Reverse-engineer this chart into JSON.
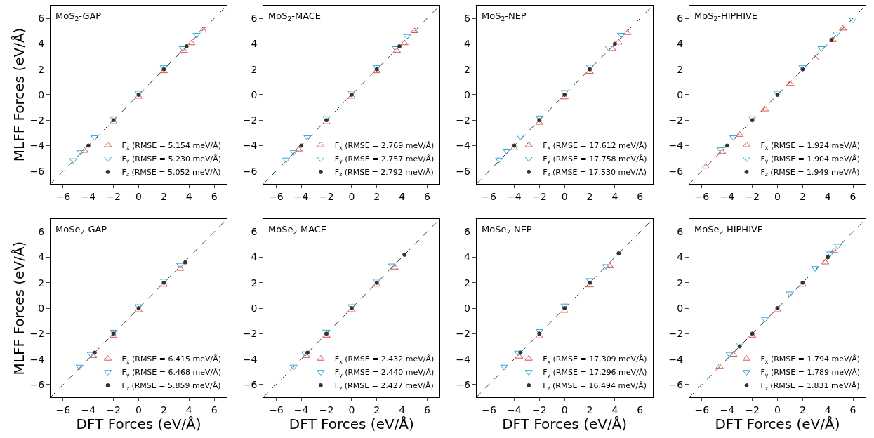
{
  "chart_data": [
    {
      "type": "scatter",
      "title": "MoS$_{2}$-GAP",
      "ylabel": "MLFF Forces (eV/Å)",
      "xlim": [
        -7,
        7
      ],
      "ylim": [
        -7,
        7
      ],
      "xticks": [
        -6,
        -4,
        -2,
        0,
        2,
        4,
        6
      ],
      "yticks": [
        -6,
        -4,
        -2,
        0,
        2,
        4,
        6
      ],
      "grid": false,
      "legend": "bottom right",
      "series": [
        {
          "name": "F$_{x}$ (RMSE = 5.154 meV/Å)",
          "color": "#e05252",
          "marker": "triangle",
          "x": [
            -4.3,
            -2,
            0,
            2,
            3.6,
            4.2,
            5.1
          ],
          "values": [
            -4.4,
            -2.15,
            -0.15,
            1.85,
            3.45,
            4.05,
            5.05
          ]
        },
        {
          "name": "F$_{y}$ (RMSE = 5.230 meV/Å)",
          "color": "#35a6d6",
          "marker": "triangle-down",
          "x": [
            -5.2,
            -4.6,
            -3.5,
            -2,
            0,
            2,
            3.5,
            4.6
          ],
          "values": [
            -5.15,
            -4.5,
            -3.35,
            -1.85,
            0.15,
            2.15,
            3.65,
            4.7
          ]
        },
        {
          "name": "F$_{z}$ (RMSE = 5.052 meV/Å)",
          "color": "#333333",
          "marker": "circle",
          "x": [
            -4,
            -2,
            0,
            2,
            3.8
          ],
          "values": [
            -4,
            -2,
            0,
            2,
            3.8
          ]
        },
        {
          "type": "line",
          "color": "#000000",
          "line_style": "dashed",
          "marker": "none",
          "x": [
            -7,
            7
          ],
          "values": [
            -7,
            7
          ]
        }
      ]
    },
    {
      "type": "scatter",
      "title": "MoS$_{2}$-MACE",
      "xlim": [
        -7,
        7
      ],
      "ylim": [
        -7,
        7
      ],
      "xticks": [
        -6,
        -4,
        -2,
        0,
        2,
        4,
        6
      ],
      "yticks": [
        -6,
        -4,
        -2,
        0,
        2,
        4,
        6
      ],
      "grid": false,
      "legend": "bottom right",
      "series": [
        {
          "name": "F$_{x}$ (RMSE = 2.769 meV/Å)",
          "color": "#e05252",
          "marker": "triangle",
          "x": [
            -4.2,
            -2,
            0,
            2,
            3.6,
            4.2,
            5.0
          ],
          "values": [
            -4.3,
            -2.15,
            -0.15,
            1.85,
            3.45,
            4.05,
            5.0
          ]
        },
        {
          "name": "F$_{y}$ (RMSE = 2.757 meV/Å)",
          "color": "#35a6d6",
          "marker": "triangle-down",
          "x": [
            -5.2,
            -4.6,
            -3.5,
            -2,
            0,
            2,
            3.5,
            4.4
          ],
          "values": [
            -5.1,
            -4.5,
            -3.35,
            -1.85,
            0.15,
            2.15,
            3.65,
            4.6
          ]
        },
        {
          "name": "F$_{z}$ (RMSE = 2.792 meV/Å)",
          "color": "#333333",
          "marker": "circle",
          "x": [
            -4,
            -2,
            0,
            2,
            3.8
          ],
          "values": [
            -4,
            -2,
            0,
            2,
            3.8
          ]
        },
        {
          "type": "line",
          "color": "#000000",
          "line_style": "dashed",
          "marker": "none",
          "x": [
            -7,
            7
          ],
          "values": [
            -7,
            7
          ]
        }
      ]
    },
    {
      "type": "scatter",
      "title": "MoS$_{2}$-NEP",
      "xlim": [
        -7,
        7
      ],
      "ylim": [
        -7,
        7
      ],
      "xticks": [
        -6,
        -4,
        -2,
        0,
        2,
        4,
        6
      ],
      "yticks": [
        -6,
        -4,
        -2,
        0,
        2,
        4,
        6
      ],
      "grid": false,
      "legend": "bottom right",
      "series": [
        {
          "name": "F$_{x}$ (RMSE = 17.612 meV/Å)",
          "color": "#e05252",
          "marker": "triangle",
          "x": [
            -4,
            -2,
            0,
            2,
            3.8,
            4.3,
            5.0
          ],
          "values": [
            -4.2,
            -2.2,
            -0.2,
            1.8,
            3.6,
            4.1,
            4.85
          ]
        },
        {
          "name": "F$_{y}$ (RMSE = 17.758 meV/Å)",
          "color": "#35a6d6",
          "marker": "triangle-down",
          "x": [
            -5.2,
            -4.6,
            -3.5,
            -2,
            0,
            2,
            3.5,
            4.5
          ],
          "values": [
            -5.1,
            -4.4,
            -3.3,
            -1.8,
            0.2,
            2.2,
            3.7,
            4.7
          ]
        },
        {
          "name": "F$_{z}$ (RMSE = 17.530 meV/Å)",
          "color": "#333333",
          "marker": "circle",
          "x": [
            -4,
            -2,
            0,
            2,
            4
          ],
          "values": [
            -4,
            -2,
            0,
            2,
            4
          ]
        },
        {
          "type": "line",
          "color": "#000000",
          "line_style": "dashed",
          "marker": "none",
          "x": [
            -7,
            7
          ],
          "values": [
            -7,
            7
          ]
        }
      ]
    },
    {
      "type": "scatter",
      "title": "MoS$_{2}$-HIPHIVE",
      "xlim": [
        -7,
        7
      ],
      "ylim": [
        -7,
        7
      ],
      "xticks": [
        -6,
        -4,
        -2,
        0,
        2,
        4,
        6
      ],
      "yticks": [
        -6,
        -4,
        -2,
        0,
        2,
        4,
        6
      ],
      "grid": false,
      "legend": "bottom right",
      "series": [
        {
          "name": "F$_{x}$ (RMSE = 1.924 meV/Å)",
          "color": "#e05252",
          "marker": "triangle",
          "x": [
            -5.7,
            -4.4,
            -3,
            -1,
            1,
            3,
            4.4,
            5.2
          ],
          "values": [
            -5.65,
            -4.5,
            -3.15,
            -1.15,
            0.85,
            2.85,
            4.3,
            5.2
          ]
        },
        {
          "name": "F$_{y}$ (RMSE = 1.904 meV/Å)",
          "color": "#35a6d6",
          "marker": "triangle-down",
          "x": [
            -4.5,
            -3.5,
            -2,
            0,
            2,
            3.5,
            4.7,
            6.0
          ],
          "values": [
            -4.3,
            -3.35,
            -1.85,
            0.15,
            2.15,
            3.65,
            4.8,
            5.9
          ]
        },
        {
          "name": "F$_{z}$ (RMSE = 1.949 meV/Å)",
          "color": "#333333",
          "marker": "circle",
          "x": [
            -4,
            -2,
            0,
            2,
            4.3
          ],
          "values": [
            -4,
            -2,
            0,
            2,
            4.3
          ]
        },
        {
          "type": "line",
          "color": "#000000",
          "line_style": "dashed",
          "marker": "none",
          "x": [
            -7,
            7
          ],
          "values": [
            -7,
            7
          ]
        }
      ]
    },
    {
      "type": "scatter",
      "title": "MoSe$_{2}$-GAP",
      "xlabel": "DFT Forces (eV/Å)",
      "ylabel": "MLFF Forces (eV/Å)",
      "xlim": [
        -7,
        7
      ],
      "ylim": [
        -7,
        7
      ],
      "xticks": [
        -6,
        -4,
        -2,
        0,
        2,
        4,
        6
      ],
      "yticks": [
        -6,
        -4,
        -2,
        0,
        2,
        4,
        6
      ],
      "grid": false,
      "legend": "bottom right",
      "series": [
        {
          "name": "F$_{x}$ (RMSE = 6.415 meV/Å)",
          "color": "#e05252",
          "marker": "triangle",
          "x": [
            -3.6,
            -2,
            0,
            2,
            3.3
          ],
          "values": [
            -3.75,
            -2.15,
            -0.15,
            1.85,
            3.1
          ]
        },
        {
          "name": "F$_{y}$ (RMSE = 6.468 meV/Å)",
          "color": "#35a6d6",
          "marker": "triangle-down",
          "x": [
            -4.7,
            -3.8,
            -2,
            0,
            2,
            3.3
          ],
          "values": [
            -4.6,
            -3.6,
            -1.85,
            0.15,
            2.15,
            3.4
          ]
        },
        {
          "name": "F$_{z}$ (RMSE = 5.859 meV/Å)",
          "color": "#333333",
          "marker": "circle",
          "x": [
            -3.5,
            -2,
            0,
            2,
            3.7
          ],
          "values": [
            -3.5,
            -2,
            0,
            2,
            3.6
          ]
        },
        {
          "type": "line",
          "color": "#000000",
          "line_style": "dashed",
          "marker": "none",
          "x": [
            -7,
            7
          ],
          "values": [
            -7,
            7
          ]
        }
      ]
    },
    {
      "type": "scatter",
      "title": "MoSe$_{2}$-MACE",
      "xlabel": "DFT Forces (eV/Å)",
      "xlim": [
        -7,
        7
      ],
      "ylim": [
        -7,
        7
      ],
      "xticks": [
        -6,
        -4,
        -2,
        0,
        2,
        4,
        6
      ],
      "yticks": [
        -6,
        -4,
        -2,
        0,
        2,
        4,
        6
      ],
      "grid": false,
      "legend": "bottom right",
      "series": [
        {
          "name": "F$_{x}$ (RMSE = 2.432 meV/Å)",
          "color": "#e05252",
          "marker": "triangle",
          "x": [
            -3.6,
            -2,
            0,
            2,
            3.4
          ],
          "values": [
            -3.75,
            -2.15,
            -0.15,
            1.85,
            3.2
          ]
        },
        {
          "name": "F$_{y}$ (RMSE = 2.440 meV/Å)",
          "color": "#35a6d6",
          "marker": "triangle-down",
          "x": [
            -4.6,
            -3.7,
            -2,
            0,
            2,
            3.2
          ],
          "values": [
            -4.6,
            -3.55,
            -1.85,
            0.15,
            2.15,
            3.35
          ]
        },
        {
          "name": "F$_{z}$ (RMSE = 2.427 meV/Å)",
          "color": "#333333",
          "marker": "circle",
          "x": [
            -3.5,
            -2,
            0,
            2,
            4.2
          ],
          "values": [
            -3.5,
            -2,
            0,
            2,
            4.2
          ]
        },
        {
          "type": "line",
          "color": "#000000",
          "line_style": "dashed",
          "marker": "none",
          "x": [
            -7,
            7
          ],
          "values": [
            -7,
            7
          ]
        }
      ]
    },
    {
      "type": "scatter",
      "title": "MoSe$_{2}$-NEP",
      "xlabel": "DFT Forces (eV/Å)",
      "xlim": [
        -7,
        7
      ],
      "ylim": [
        -7,
        7
      ],
      "xticks": [
        -6,
        -4,
        -2,
        0,
        2,
        4,
        6
      ],
      "yticks": [
        -6,
        -4,
        -2,
        0,
        2,
        4,
        6
      ],
      "grid": false,
      "legend": "bottom right",
      "series": [
        {
          "name": "F$_{x}$ (RMSE = 17.309 meV/Å)",
          "color": "#e05252",
          "marker": "triangle",
          "x": [
            -3.6,
            -2,
            0,
            2,
            3.6
          ],
          "values": [
            -3.8,
            -2.2,
            -0.2,
            1.8,
            3.3
          ]
        },
        {
          "name": "F$_{y}$ (RMSE = 17.296 meV/Å)",
          "color": "#35a6d6",
          "marker": "triangle-down",
          "x": [
            -4.8,
            -3.7,
            -2,
            0,
            2,
            3.3
          ],
          "values": [
            -4.6,
            -3.5,
            -1.8,
            0.2,
            2.2,
            3.3
          ]
        },
        {
          "name": "F$_{z}$ (RMSE = 16.494 meV/Å)",
          "color": "#333333",
          "marker": "circle",
          "x": [
            -3.5,
            -2,
            0,
            2,
            4.3
          ],
          "values": [
            -3.5,
            -2,
            0,
            2,
            4.3
          ]
        },
        {
          "type": "line",
          "color": "#000000",
          "line_style": "dashed",
          "marker": "none",
          "x": [
            -7,
            7
          ],
          "values": [
            -7,
            7
          ]
        }
      ]
    },
    {
      "type": "scatter",
      "title": "MoSe$_{2}$-HIPHIVE",
      "xlabel": "DFT Forces (eV/Å)",
      "xlim": [
        -7,
        7
      ],
      "ylim": [
        -7,
        7
      ],
      "xticks": [
        -6,
        -4,
        -2,
        0,
        2,
        4,
        6
      ],
      "yticks": [
        -6,
        -4,
        -2,
        0,
        2,
        4,
        6
      ],
      "grid": false,
      "legend": "bottom right",
      "series": [
        {
          "name": "F$_{x}$ (RMSE = 1.794 meV/Å)",
          "color": "#e05252",
          "marker": "triangle",
          "x": [
            -4.6,
            -3.5,
            -2,
            0,
            2,
            3.8,
            4.5
          ],
          "values": [
            -4.6,
            -3.65,
            -2.15,
            -0.15,
            1.85,
            3.6,
            4.5
          ]
        },
        {
          "name": "F$_{y}$ (RMSE = 1.789 meV/Å)",
          "color": "#35a6d6",
          "marker": "triangle-down",
          "x": [
            -3.8,
            -3,
            -1,
            1,
            3,
            4.2,
            4.8
          ],
          "values": [
            -3.6,
            -2.85,
            -0.85,
            1.15,
            3.15,
            4.3,
            4.9
          ]
        },
        {
          "name": "F$_{z}$ (RMSE = 1.831 meV/Å)",
          "color": "#333333",
          "marker": "circle",
          "x": [
            -3,
            -2,
            0,
            2,
            4
          ],
          "values": [
            -3,
            -2,
            0,
            2,
            4
          ]
        },
        {
          "type": "line",
          "color": "#000000",
          "line_style": "dashed",
          "marker": "none",
          "x": [
            -7,
            7
          ],
          "values": [
            -7,
            7
          ]
        }
      ]
    }
  ]
}
